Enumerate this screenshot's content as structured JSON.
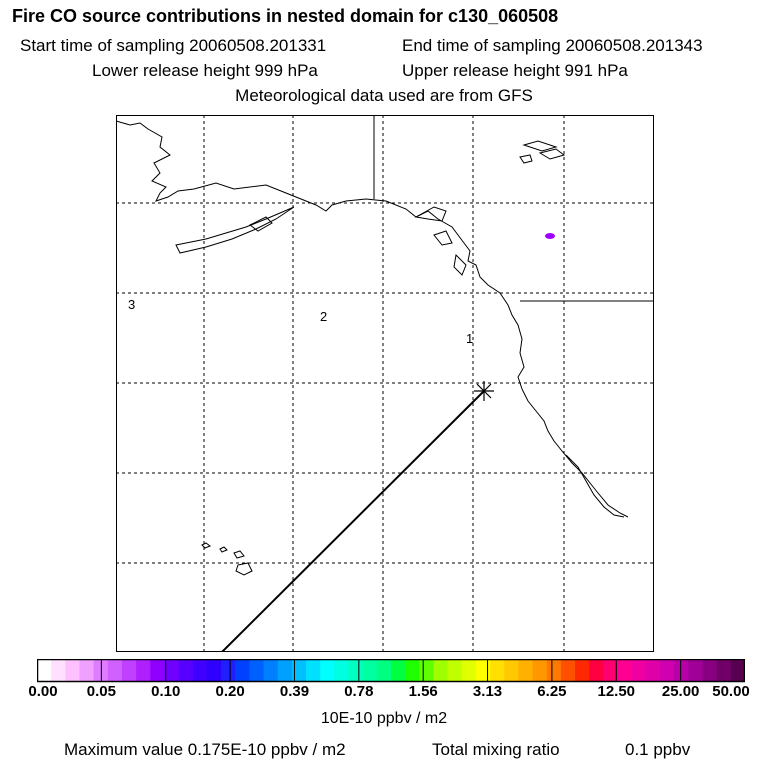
{
  "title": "Fire CO source contributions in nested domain for c130_060508",
  "sampling": {
    "start": "Start time of sampling 20060508.201331",
    "end": "End time of sampling 20060508.201343"
  },
  "release": {
    "lower": "Lower release height  999 hPa",
    "upper": "Upper release height  991 hPa"
  },
  "met_source": "Meteorological data used are from GFS",
  "map": {
    "region_labels": [
      "1",
      "2",
      "3"
    ],
    "colors": {
      "frame": "#000000",
      "grid": "#000000",
      "trajectory": "#000000",
      "plume": "#a000ff"
    }
  },
  "colorbar": {
    "tick_labels": [
      "0.00",
      "0.05",
      "0.10",
      "0.20",
      "0.39",
      "0.78",
      "1.56",
      "3.13",
      "6.25",
      "12.50",
      "25.00",
      "50.00"
    ],
    "colors": [
      "#ffffff",
      "#ffe0ff",
      "#ffc0ff",
      "#f0a0ff",
      "#e07cff",
      "#d060ff",
      "#c040ff",
      "#b020ff",
      "#9000ff",
      "#7000ff",
      "#5800ff",
      "#4000ff",
      "#3000ff",
      "#2020ff",
      "#0040ff",
      "#0060ff",
      "#0080ff",
      "#00a0ff",
      "#00c0ff",
      "#00e0ff",
      "#00ffff",
      "#00ffe0",
      "#00ffc0",
      "#00ffa0",
      "#00ff80",
      "#00ff40",
      "#20ff00",
      "#60ff00",
      "#a0ff00",
      "#c0ff00",
      "#e0ff00",
      "#ffff00",
      "#ffe000",
      "#ffc800",
      "#ffb000",
      "#ff9800",
      "#ff7800",
      "#ff5000",
      "#ff2800",
      "#ff0040",
      "#ff0070",
      "#ff0090",
      "#f000a0",
      "#e000a8",
      "#d000b0",
      "#b800a8",
      "#a00098",
      "#880080",
      "#700068",
      "#580050"
    ],
    "units": "10E-10 ppbv / m2"
  },
  "footer": {
    "max_value": "Maximum value  0.175E-10 ppbv / m2",
    "total_label": "Total mixing ratio",
    "total_value": "0.1 ppbv"
  }
}
